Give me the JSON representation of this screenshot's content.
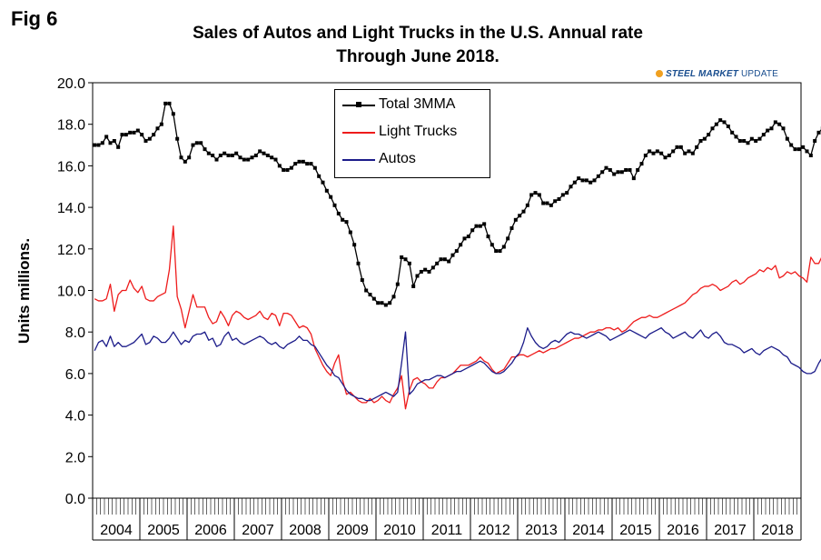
{
  "figure": {
    "label": "Fig 6"
  },
  "logo": {
    "text_bold": "STEEL MARKET",
    "text_normal": "UPDATE"
  },
  "chart_data": {
    "type": "line",
    "title": "Sales of Autos and Light Trucks in the U.S. Annual rate",
    "subtitle": "Through June 2018.",
    "ylabel": "Units millions.",
    "xlabel": "",
    "ylim": [
      0,
      20
    ],
    "yticks": [
      "0.0",
      "2.0",
      "4.0",
      "6.0",
      "8.0",
      "10.0",
      "12.0",
      "14.0",
      "16.0",
      "18.0",
      "20.0"
    ],
    "year_labels": [
      "2004",
      "2005",
      "2006",
      "2007",
      "2008",
      "2009",
      "2010",
      "2011",
      "2012",
      "2013",
      "2014",
      "2015",
      "2016",
      "2017",
      "2018"
    ],
    "x_start": "Jan 2004",
    "legend_position": "top-center",
    "grid": false,
    "series": [
      {
        "name": "Total 3MMA",
        "color": "#000000",
        "marker": "square",
        "values": [
          17.0,
          17.0,
          17.1,
          17.4,
          17.1,
          17.2,
          16.9,
          17.5,
          17.5,
          17.6,
          17.6,
          17.7,
          17.5,
          17.2,
          17.3,
          17.5,
          17.8,
          18.0,
          19.0,
          19.0,
          18.5,
          17.3,
          16.4,
          16.2,
          16.4,
          17.0,
          17.1,
          17.1,
          16.8,
          16.6,
          16.5,
          16.3,
          16.5,
          16.6,
          16.5,
          16.5,
          16.6,
          16.4,
          16.3,
          16.3,
          16.4,
          16.5,
          16.7,
          16.6,
          16.5,
          16.4,
          16.3,
          16.0,
          15.8,
          15.8,
          15.9,
          16.1,
          16.2,
          16.2,
          16.1,
          16.1,
          15.9,
          15.5,
          15.2,
          14.8,
          14.5,
          14.1,
          13.7,
          13.4,
          13.3,
          12.8,
          12.2,
          11.3,
          10.5,
          10.0,
          9.8,
          9.6,
          9.4,
          9.4,
          9.3,
          9.4,
          9.7,
          10.3,
          11.6,
          11.5,
          11.3,
          10.2,
          10.7,
          10.9,
          11.0,
          10.9,
          11.1,
          11.3,
          11.5,
          11.5,
          11.4,
          11.7,
          11.9,
          12.2,
          12.5,
          12.6,
          12.9,
          13.1,
          13.1,
          13.2,
          12.6,
          12.2,
          11.9,
          11.9,
          12.1,
          12.5,
          13.0,
          13.4,
          13.6,
          13.8,
          14.1,
          14.6,
          14.7,
          14.6,
          14.2,
          14.2,
          14.1,
          14.3,
          14.4,
          14.6,
          14.7,
          15.0,
          15.2,
          15.4,
          15.3,
          15.3,
          15.2,
          15.3,
          15.5,
          15.7,
          15.9,
          15.8,
          15.6,
          15.7,
          15.7,
          15.8,
          15.8,
          15.4,
          15.8,
          16.1,
          16.5,
          16.7,
          16.6,
          16.7,
          16.6,
          16.4,
          16.5,
          16.7,
          16.9,
          16.9,
          16.6,
          16.7,
          16.6,
          16.9,
          17.2,
          17.3,
          17.5,
          17.8,
          18.0,
          18.2,
          18.1,
          17.9,
          17.6,
          17.4,
          17.2,
          17.2,
          17.1,
          17.3,
          17.2,
          17.3,
          17.5,
          17.7,
          17.8,
          18.1,
          18.0,
          17.8,
          17.3,
          17.0,
          16.8,
          16.8,
          16.9,
          16.7,
          16.5,
          17.2,
          17.6,
          17.8,
          18.1,
          17.8,
          17.6,
          17.4,
          17.3,
          17.2,
          17.2,
          17.2,
          17.2
        ]
      },
      {
        "name": "Light Trucks",
        "color": "#ee1c1c",
        "values": [
          9.6,
          9.5,
          9.5,
          9.6,
          10.3,
          9.0,
          9.8,
          10.0,
          10.0,
          10.5,
          10.1,
          9.9,
          10.2,
          9.6,
          9.5,
          9.5,
          9.7,
          9.8,
          9.9,
          11.0,
          13.1,
          9.7,
          9.1,
          8.2,
          9.0,
          9.8,
          9.2,
          9.2,
          9.2,
          8.7,
          8.4,
          8.5,
          9.0,
          8.7,
          8.3,
          8.8,
          9.0,
          8.9,
          8.7,
          8.6,
          8.7,
          8.8,
          9.0,
          8.7,
          8.6,
          8.9,
          8.8,
          8.3,
          8.9,
          8.9,
          8.8,
          8.5,
          8.2,
          8.3,
          8.2,
          7.9,
          7.2,
          6.8,
          6.4,
          6.1,
          5.9,
          6.5,
          6.9,
          5.7,
          5.0,
          5.1,
          4.9,
          4.7,
          4.6,
          4.6,
          4.8,
          4.6,
          4.7,
          4.9,
          4.7,
          4.6,
          5.0,
          5.3,
          5.9,
          4.3,
          5.2,
          5.7,
          5.8,
          5.6,
          5.5,
          5.3,
          5.3,
          5.6,
          5.8,
          5.8,
          5.9,
          6.0,
          6.2,
          6.4,
          6.4,
          6.4,
          6.5,
          6.6,
          6.8,
          6.6,
          6.5,
          6.2,
          6.0,
          6.1,
          6.2,
          6.5,
          6.8,
          6.8,
          6.9,
          6.9,
          6.8,
          6.9,
          7.0,
          7.1,
          7.0,
          7.1,
          7.2,
          7.2,
          7.3,
          7.4,
          7.5,
          7.6,
          7.7,
          7.7,
          7.8,
          7.9,
          8.0,
          8.0,
          8.1,
          8.1,
          8.2,
          8.2,
          8.1,
          8.2,
          8.0,
          8.1,
          8.3,
          8.5,
          8.6,
          8.7,
          8.7,
          8.8,
          8.7,
          8.7,
          8.8,
          8.9,
          9.0,
          9.1,
          9.2,
          9.3,
          9.4,
          9.6,
          9.8,
          9.9,
          10.1,
          10.2,
          10.2,
          10.3,
          10.2,
          10.0,
          10.1,
          10.2,
          10.4,
          10.5,
          10.3,
          10.4,
          10.6,
          10.7,
          10.8,
          11.0,
          10.9,
          11.1,
          11.0,
          11.2,
          10.6,
          10.7,
          10.9,
          10.8,
          10.9,
          10.7,
          10.6,
          10.4,
          11.6,
          11.3,
          11.3,
          11.7,
          11.5,
          11.3,
          11.8,
          11.7,
          11.5,
          11.8,
          12.0
        ]
      },
      {
        "name": "Autos",
        "color": "#1c1c8a",
        "values": [
          7.1,
          7.5,
          7.6,
          7.3,
          7.8,
          7.3,
          7.5,
          7.3,
          7.3,
          7.4,
          7.5,
          7.7,
          7.9,
          7.4,
          7.5,
          7.8,
          7.7,
          7.5,
          7.5,
          7.7,
          8.0,
          7.7,
          7.4,
          7.6,
          7.5,
          7.8,
          7.9,
          7.9,
          8.0,
          7.6,
          7.7,
          7.3,
          7.4,
          7.8,
          8.0,
          7.6,
          7.7,
          7.5,
          7.4,
          7.5,
          7.6,
          7.7,
          7.8,
          7.7,
          7.5,
          7.4,
          7.5,
          7.3,
          7.2,
          7.4,
          7.5,
          7.6,
          7.8,
          7.6,
          7.6,
          7.4,
          7.3,
          7.0,
          6.7,
          6.4,
          6.2,
          5.9,
          5.8,
          5.5,
          5.2,
          5.0,
          4.9,
          4.8,
          4.8,
          4.7,
          4.7,
          4.8,
          4.9,
          5.0,
          5.1,
          5.0,
          4.9,
          5.1,
          6.5,
          8.0,
          5.0,
          5.2,
          5.5,
          5.6,
          5.7,
          5.7,
          5.8,
          5.9,
          5.9,
          5.8,
          5.9,
          6.0,
          6.1,
          6.1,
          6.2,
          6.3,
          6.4,
          6.5,
          6.6,
          6.5,
          6.3,
          6.1,
          6.0,
          6.0,
          6.1,
          6.3,
          6.5,
          6.8,
          7.0,
          7.5,
          8.2,
          7.8,
          7.5,
          7.3,
          7.2,
          7.3,
          7.5,
          7.6,
          7.5,
          7.7,
          7.9,
          8.0,
          7.9,
          7.9,
          7.8,
          7.7,
          7.8,
          7.9,
          8.0,
          7.9,
          7.8,
          7.6,
          7.7,
          7.8,
          7.9,
          8.0,
          8.1,
          8.0,
          7.9,
          7.8,
          7.7,
          7.9,
          8.0,
          8.1,
          8.2,
          8.0,
          7.9,
          7.7,
          7.8,
          7.9,
          8.0,
          7.8,
          7.7,
          7.9,
          8.1,
          7.8,
          7.7,
          7.9,
          8.0,
          7.8,
          7.5,
          7.4,
          7.4,
          7.3,
          7.2,
          7.0,
          7.1,
          7.2,
          7.0,
          6.9,
          7.1,
          7.2,
          7.3,
          7.2,
          7.1,
          6.9,
          6.8,
          6.5,
          6.4,
          6.3,
          6.1,
          6.0,
          6.0,
          6.1,
          6.5,
          6.8,
          6.6,
          6.4,
          6.2,
          6.0,
          5.8,
          5.7,
          5.6,
          5.4,
          5.4,
          5.5
        ]
      }
    ]
  }
}
